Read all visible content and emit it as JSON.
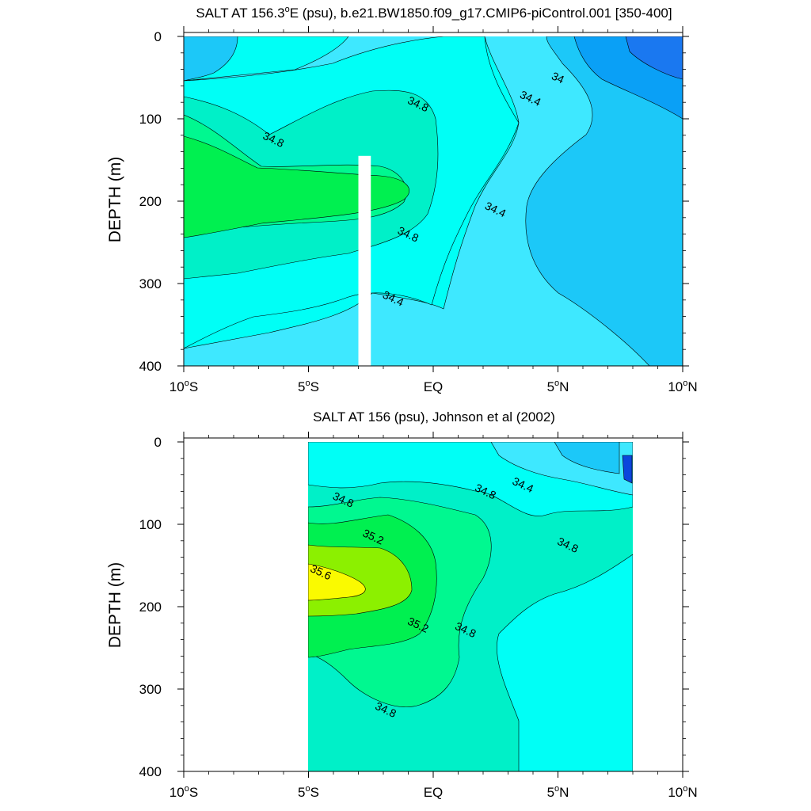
{
  "chart_data": [
    {
      "type": "contour",
      "title_parts": [
        "SALT AT 156.3",
        "o",
        "E (psu), b.e21.BW1850.f09_g17.CMIP6-piControl.001 [350-400]"
      ],
      "xlabel": "",
      "ylabel": "DEPTH (m)",
      "xlim": [
        -10,
        10
      ],
      "ylim": [
        400,
        0
      ],
      "y_ticks": [
        "0",
        "100",
        "200",
        "300",
        "400"
      ],
      "x_ticks": [
        {
          "value": -10,
          "num": "10",
          "hemi": "S"
        },
        {
          "value": -5,
          "num": "5",
          "hemi": "S"
        },
        {
          "value": 0,
          "num": "",
          "hemi": "EQ"
        },
        {
          "value": 5,
          "num": "5",
          "hemi": "N"
        },
        {
          "value": 10,
          "num": "10",
          "hemi": "N"
        }
      ],
      "contour_levels": [
        33.6,
        33.8,
        34.0,
        34.2,
        34.4,
        34.6,
        34.8,
        35.0,
        35.2,
        35.4,
        35.6
      ],
      "contour_labels": [
        {
          "text": "34",
          "x": 5.0,
          "y": 50
        },
        {
          "text": "34.4",
          "x": 3.9,
          "y": 75
        },
        {
          "text": "34.8",
          "x": -0.6,
          "y": 82
        },
        {
          "text": "34.8",
          "x": -6.4,
          "y": 125
        },
        {
          "text": "34.4",
          "x": 2.5,
          "y": 210
        },
        {
          "text": "34.8",
          "x": -1.0,
          "y": 240
        },
        {
          "text": "34.4",
          "x": -1.6,
          "y": 318
        }
      ],
      "missing_column": {
        "x": [
          -3.0,
          -2.5
        ],
        "y": [
          145,
          400
        ]
      }
    },
    {
      "type": "contour",
      "title_parts": [
        "SALT AT 156 (psu), Johnson et al (2002)"
      ],
      "xlabel": "",
      "ylabel": "DEPTH (m)",
      "xlim": [
        -10,
        10
      ],
      "ylim": [
        400,
        0
      ],
      "data_x_range": [
        -5,
        8
      ],
      "y_ticks": [
        "0",
        "100",
        "200",
        "300",
        "400"
      ],
      "x_ticks": [
        {
          "value": -10,
          "num": "10",
          "hemi": "S"
        },
        {
          "value": -5,
          "num": "5",
          "hemi": "S"
        },
        {
          "value": 0,
          "num": "",
          "hemi": "EQ"
        },
        {
          "value": 5,
          "num": "5",
          "hemi": "N"
        },
        {
          "value": 10,
          "num": "10",
          "hemi": "N"
        }
      ],
      "contour_levels": [
        33.6,
        33.8,
        34.0,
        34.2,
        34.4,
        34.6,
        34.8,
        35.0,
        35.2,
        35.4,
        35.6
      ],
      "contour_labels": [
        {
          "text": "34.8",
          "x": -3.6,
          "y": 70
        },
        {
          "text": "34.8",
          "x": 2.1,
          "y": 60
        },
        {
          "text": "34.4",
          "x": 3.6,
          "y": 52
        },
        {
          "text": "35.2",
          "x": -2.4,
          "y": 115
        },
        {
          "text": "35.6",
          "x": -4.5,
          "y": 158
        },
        {
          "text": "34.8",
          "x": 5.4,
          "y": 125
        },
        {
          "text": "35.2",
          "x": -0.6,
          "y": 222
        },
        {
          "text": "34.8",
          "x": 1.3,
          "y": 228
        },
        {
          "text": "34.8",
          "x": -1.9,
          "y": 325
        }
      ]
    }
  ],
  "colors": {
    "s33_6": "#0a46dc",
    "s33_8": "#1a78f0",
    "s34_0": "#0aa0f6",
    "s34_2": "#1cc8f8",
    "s34_4": "#3ee8ff",
    "s34_6": "#00fff6",
    "s34_8": "#00f0c8",
    "s35_0": "#00f890",
    "s35_2": "#00f050",
    "s35_4": "#8cf000",
    "s35_6": "#fafa00"
  }
}
